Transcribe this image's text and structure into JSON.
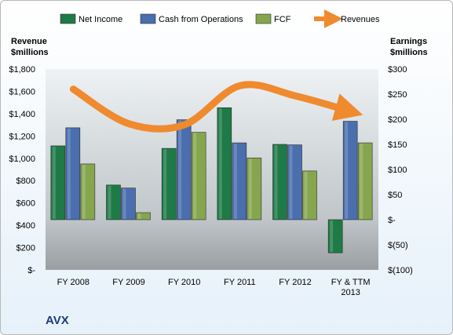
{
  "company": "AVX",
  "chart_data": {
    "type": "bar",
    "categories": [
      "FY 2008",
      "FY 2009",
      "FY 2010",
      "FY 2011",
      "FY 2012",
      "FY & TTM\n2013"
    ],
    "series": [
      {
        "name": "Net Income",
        "axis": "right",
        "color": "#1e7a46",
        "values": [
          147,
          69,
          142,
          223,
          150,
          -66
        ]
      },
      {
        "name": "Cash from Operations",
        "axis": "right",
        "color": "#4a6eae",
        "values": [
          183,
          63,
          199,
          153,
          149,
          196
        ]
      },
      {
        "name": "FCF",
        "axis": "right",
        "color": "#86a64e",
        "values": [
          111,
          14,
          174,
          123,
          97,
          153
        ]
      },
      {
        "name": "Revenues",
        "axis": "left",
        "type": "line",
        "color": "#ef8a2f",
        "values": [
          1620,
          1310,
          1300,
          1650,
          1560,
          1420
        ]
      }
    ],
    "left_axis": {
      "label_line1": "Revenue",
      "label_line2": "$millions",
      "ylim": [
        0,
        1800
      ],
      "ticks": [
        "$-",
        "$200",
        "$400",
        "$600",
        "$800",
        "$1,000",
        "$1,200",
        "$1,400",
        "$1,600",
        "$1,800"
      ]
    },
    "right_axis": {
      "label_line1": "Earnings",
      "label_line2": "$millions",
      "ylim": [
        -100,
        300
      ],
      "ticks": [
        "$(100)",
        "$(50)",
        "$-",
        "$50",
        "$100",
        "$150",
        "$200",
        "$250",
        "$300"
      ]
    },
    "legend_position": "top",
    "grid": false
  }
}
